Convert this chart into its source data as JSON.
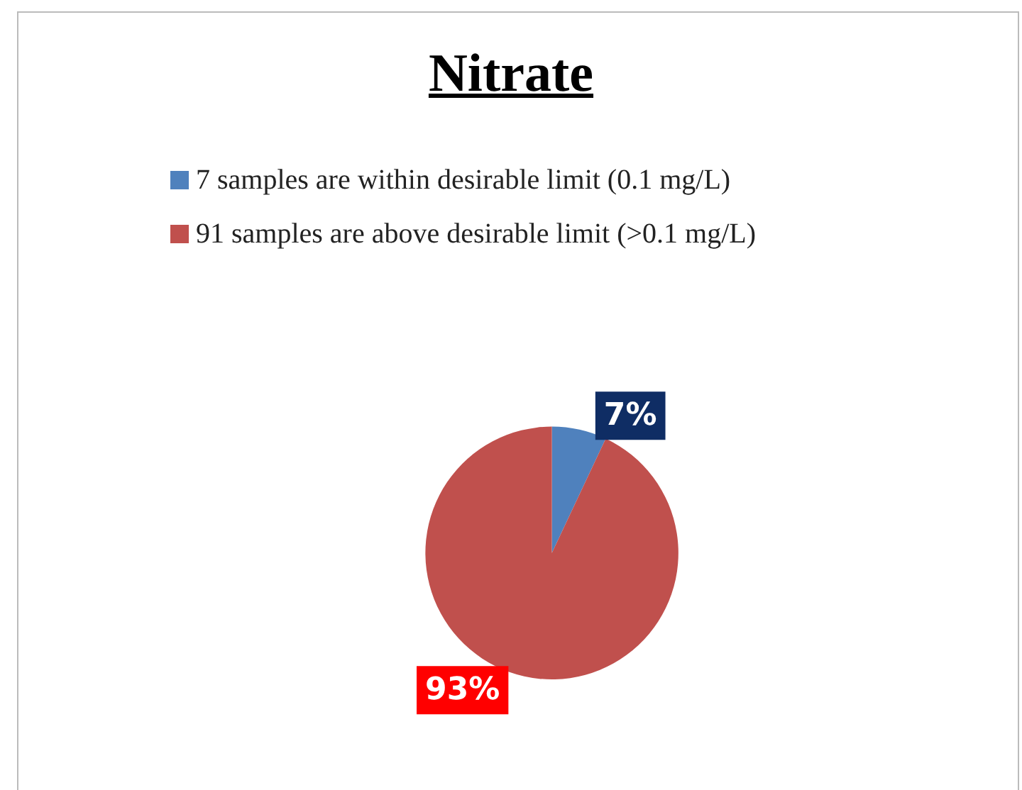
{
  "chart_data": {
    "type": "pie",
    "title": "Nitrate",
    "categories": [
      "7 samples are within desirable limit (0.1 mg/L)",
      "91 samples are above desirable limit (>0.1 mg/L)"
    ],
    "values": [
      7,
      93
    ],
    "value_labels": [
      "7%",
      "93%"
    ],
    "colors": [
      "#4f81bd",
      "#c0504d"
    ],
    "legend": "top"
  }
}
